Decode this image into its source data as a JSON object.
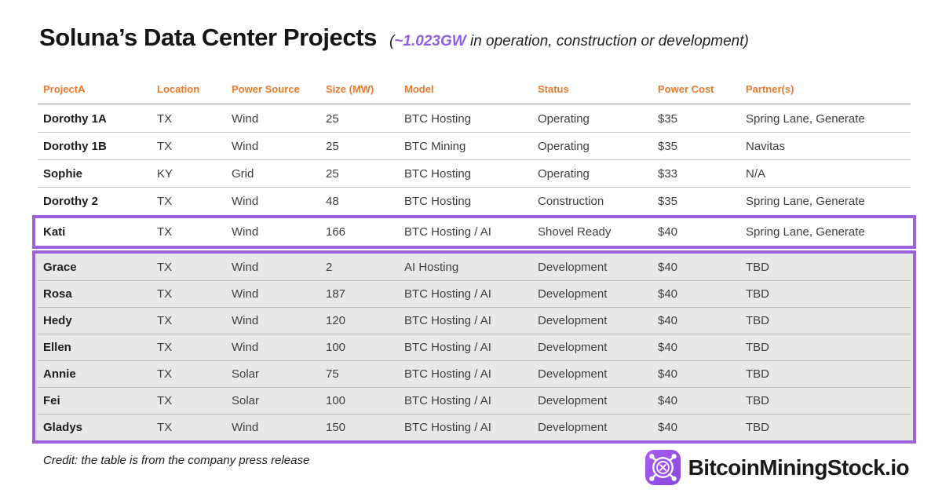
{
  "page": {
    "title": "Soluna’s Data Center Projects",
    "subtitle_prefix": "(",
    "subtitle_accent": "~1.023GW",
    "subtitle_rest": " in operation, construction or development)"
  },
  "chart_data": {
    "type": "table",
    "title": "Soluna’s Data Center Projects",
    "subtitle": "(~1.023GW in operation, construction or development)",
    "columns": [
      "ProjectA",
      "Location",
      "Power Source",
      "Size (MW)",
      "Model",
      "Status",
      "Power Cost",
      "Partner(s)"
    ],
    "column_keys": [
      "project",
      "location",
      "power-source",
      "size-mw",
      "model",
      "status",
      "power-cost",
      "partners"
    ],
    "rows": [
      {
        "group": "plain",
        "cells": [
          "Dorothy 1A",
          "TX",
          "Wind",
          "25",
          "BTC Hosting",
          "Operating",
          "$35",
          "Spring Lane, Generate"
        ]
      },
      {
        "group": "plain",
        "cells": [
          "Dorothy 1B",
          "TX",
          "Wind",
          "25",
          "BTC Mining",
          "Operating",
          "$35",
          "Navitas"
        ]
      },
      {
        "group": "plain",
        "cells": [
          "Sophie",
          "KY",
          "Grid",
          "25",
          "BTC Hosting",
          "Operating",
          "$33",
          "N/A"
        ]
      },
      {
        "group": "plain",
        "cells": [
          "Dorothy 2",
          "TX",
          "Wind",
          "48",
          "BTC Hosting",
          "Construction",
          "$35",
          "Spring Lane, Generate"
        ]
      },
      {
        "group": "kati",
        "cells": [
          "Kati",
          "TX",
          "Wind",
          "166",
          "BTC Hosting / AI",
          "Shovel Ready",
          "$40",
          "Spring Lane, Generate"
        ]
      },
      {
        "group": "dev",
        "cells": [
          "Grace",
          "TX",
          "Wind",
          "2",
          "AI Hosting",
          "Development",
          "$40",
          "TBD"
        ]
      },
      {
        "group": "dev",
        "cells": [
          "Rosa",
          "TX",
          "Wind",
          "187",
          "BTC Hosting / AI",
          "Development",
          "$40",
          "TBD"
        ]
      },
      {
        "group": "dev",
        "cells": [
          "Hedy",
          "TX",
          "Wind",
          "120",
          "BTC Hosting / AI",
          "Development",
          "$40",
          "TBD"
        ]
      },
      {
        "group": "dev",
        "cells": [
          "Ellen",
          "TX",
          "Wind",
          "100",
          "BTC Hosting / AI",
          "Development",
          "$40",
          "TBD"
        ]
      },
      {
        "group": "dev",
        "cells": [
          "Annie",
          "TX",
          "Solar",
          "75",
          "BTC Hosting / AI",
          "Development",
          "$40",
          "TBD"
        ]
      },
      {
        "group": "dev",
        "cells": [
          "Fei",
          "TX",
          "Solar",
          "100",
          "BTC Hosting / AI",
          "Development",
          "$40",
          "TBD"
        ]
      },
      {
        "group": "dev",
        "cells": [
          "Gladys",
          "TX",
          "Wind",
          "150",
          "BTC Hosting / AI",
          "Development",
          "$40",
          "TBD"
        ]
      }
    ],
    "highlights": {
      "boxed_single_row": "Kati",
      "boxed_group_rows": [
        "Grace",
        "Rosa",
        "Hedy",
        "Ellen",
        "Annie",
        "Fei",
        "Gladys"
      ]
    },
    "layout": {
      "grid": "horizontal-rules-only",
      "header_color": "#E87A2E",
      "highlight_border_color": "#9C63DB",
      "group_row_background": "#E8E8E8"
    }
  },
  "footer": {
    "credit": "Credit: the table is from the company press release",
    "brand": "BitcoinMiningStock.io"
  },
  "colors": {
    "header_orange": "#E87A2E",
    "highlight_purple": "#9C63DB",
    "subtitle_accent_purple": "#8F5FE8",
    "dev_row_gray": "#E8E8E8"
  }
}
